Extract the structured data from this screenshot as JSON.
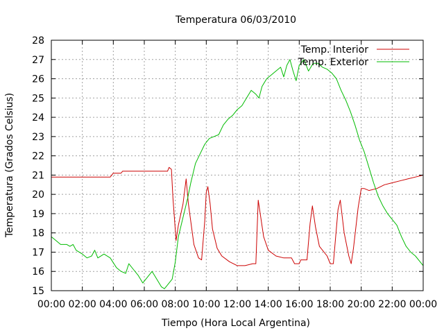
{
  "chart_data": {
    "type": "line",
    "title": "Temperatura 06/03/2010",
    "xlabel": "Tiempo (Hora Local Argentina)",
    "ylabel": "Temperatura (Grados Celsius)",
    "x_unit": "hour of day",
    "xlim": [
      0,
      24
    ],
    "ylim": [
      15,
      28
    ],
    "x_ticks": [
      0,
      2,
      4,
      6,
      8,
      10,
      12,
      14,
      16,
      18,
      20,
      22,
      24
    ],
    "x_tick_labels": [
      "00:00",
      "02:00",
      "04:00",
      "06:00",
      "08:00",
      "10:00",
      "12:00",
      "14:00",
      "16:00",
      "18:00",
      "20:00",
      "22:00",
      "00:00"
    ],
    "y_ticks": [
      15,
      16,
      17,
      18,
      19,
      20,
      21,
      22,
      23,
      24,
      25,
      26,
      27,
      28
    ],
    "y_tick_labels": [
      "15",
      "16",
      "17",
      "18",
      "19",
      "20",
      "21",
      "22",
      "23",
      "24",
      "25",
      "26",
      "27",
      "28"
    ],
    "grid": true,
    "legend_position": "top-right",
    "series": [
      {
        "name": "Temp. Interior",
        "color": "#cc0000",
        "points": [
          [
            0,
            20.9
          ],
          [
            1,
            20.9
          ],
          [
            2,
            20.9
          ],
          [
            3,
            20.9
          ],
          [
            3.8,
            20.9
          ],
          [
            4.0,
            21.1
          ],
          [
            4.5,
            21.1
          ],
          [
            4.6,
            21.2
          ],
          [
            5,
            21.2
          ],
          [
            6,
            21.2
          ],
          [
            7,
            21.2
          ],
          [
            7.5,
            21.2
          ],
          [
            7.6,
            21.4
          ],
          [
            7.75,
            21.3
          ],
          [
            7.85,
            19.8
          ],
          [
            8.05,
            17.6
          ],
          [
            8.2,
            18.4
          ],
          [
            8.5,
            19.5
          ],
          [
            8.7,
            20.8
          ],
          [
            8.85,
            19.5
          ],
          [
            9.2,
            17.4
          ],
          [
            9.5,
            16.7
          ],
          [
            9.7,
            16.6
          ],
          [
            9.9,
            18.6
          ],
          [
            10.0,
            20.1
          ],
          [
            10.1,
            20.4
          ],
          [
            10.25,
            19.5
          ],
          [
            10.4,
            18.2
          ],
          [
            10.7,
            17.2
          ],
          [
            11,
            16.8
          ],
          [
            11.5,
            16.5
          ],
          [
            12,
            16.3
          ],
          [
            12.5,
            16.3
          ],
          [
            13,
            16.4
          ],
          [
            13.2,
            16.4
          ],
          [
            13.35,
            19.7
          ],
          [
            13.5,
            18.9
          ],
          [
            13.7,
            17.8
          ],
          [
            14,
            17.1
          ],
          [
            14.5,
            16.8
          ],
          [
            15,
            16.7
          ],
          [
            15.5,
            16.7
          ],
          [
            15.7,
            16.4
          ],
          [
            16,
            16.4
          ],
          [
            16.1,
            16.6
          ],
          [
            16.5,
            16.6
          ],
          [
            16.7,
            18.5
          ],
          [
            16.85,
            19.4
          ],
          [
            17.05,
            18.3
          ],
          [
            17.3,
            17.3
          ],
          [
            17.8,
            16.8
          ],
          [
            18.0,
            16.4
          ],
          [
            18.2,
            16.4
          ],
          [
            18.5,
            19.2
          ],
          [
            18.65,
            19.7
          ],
          [
            18.9,
            18.0
          ],
          [
            19.2,
            16.8
          ],
          [
            19.35,
            16.4
          ],
          [
            19.5,
            17.2
          ],
          [
            19.8,
            19.3
          ],
          [
            20.0,
            20.3
          ],
          [
            20.2,
            20.3
          ],
          [
            20.5,
            20.2
          ],
          [
            21,
            20.3
          ],
          [
            21.5,
            20.5
          ],
          [
            22,
            20.6
          ],
          [
            22.5,
            20.7
          ],
          [
            23,
            20.8
          ],
          [
            23.5,
            20.9
          ],
          [
            24,
            21.0
          ]
        ]
      },
      {
        "name": "Temp. Exterior",
        "color": "#00bb00",
        "points": [
          [
            0,
            17.8
          ],
          [
            0.3,
            17.6
          ],
          [
            0.6,
            17.4
          ],
          [
            1.0,
            17.4
          ],
          [
            1.2,
            17.3
          ],
          [
            1.4,
            17.4
          ],
          [
            1.6,
            17.1
          ],
          [
            2.0,
            16.9
          ],
          [
            2.3,
            16.7
          ],
          [
            2.6,
            16.8
          ],
          [
            2.8,
            17.1
          ],
          [
            3.0,
            16.7
          ],
          [
            3.4,
            16.9
          ],
          [
            3.8,
            16.7
          ],
          [
            4.2,
            16.2
          ],
          [
            4.5,
            16.0
          ],
          [
            4.8,
            15.9
          ],
          [
            5.0,
            16.4
          ],
          [
            5.3,
            16.1
          ],
          [
            5.6,
            15.8
          ],
          [
            5.9,
            15.4
          ],
          [
            6.2,
            15.7
          ],
          [
            6.5,
            16.0
          ],
          [
            6.8,
            15.6
          ],
          [
            7.1,
            15.2
          ],
          [
            7.3,
            15.1
          ],
          [
            7.5,
            15.3
          ],
          [
            7.8,
            15.6
          ],
          [
            8.0,
            16.5
          ],
          [
            8.2,
            17.8
          ],
          [
            8.5,
            18.8
          ],
          [
            8.8,
            19.8
          ],
          [
            9.0,
            20.6
          ],
          [
            9.3,
            21.6
          ],
          [
            9.6,
            22.1
          ],
          [
            9.9,
            22.6
          ],
          [
            10.2,
            22.9
          ],
          [
            10.5,
            23.0
          ],
          [
            10.8,
            23.1
          ],
          [
            11.1,
            23.6
          ],
          [
            11.4,
            23.9
          ],
          [
            11.7,
            24.1
          ],
          [
            12.0,
            24.4
          ],
          [
            12.3,
            24.6
          ],
          [
            12.6,
            25.0
          ],
          [
            12.9,
            25.4
          ],
          [
            13.2,
            25.2
          ],
          [
            13.4,
            25.0
          ],
          [
            13.6,
            25.6
          ],
          [
            13.9,
            26.0
          ],
          [
            14.2,
            26.2
          ],
          [
            14.5,
            26.4
          ],
          [
            14.8,
            26.6
          ],
          [
            15.0,
            26.1
          ],
          [
            15.2,
            26.7
          ],
          [
            15.4,
            27.0
          ],
          [
            15.6,
            26.4
          ],
          [
            15.8,
            25.9
          ],
          [
            16.0,
            26.7
          ],
          [
            16.3,
            27.0
          ],
          [
            16.6,
            26.4
          ],
          [
            16.9,
            26.8
          ],
          [
            17.2,
            26.8
          ],
          [
            17.5,
            26.6
          ],
          [
            17.8,
            26.5
          ],
          [
            18.1,
            26.3
          ],
          [
            18.4,
            26.0
          ],
          [
            18.7,
            25.4
          ],
          [
            19.0,
            24.9
          ],
          [
            19.3,
            24.3
          ],
          [
            19.6,
            23.6
          ],
          [
            19.9,
            22.8
          ],
          [
            20.2,
            22.2
          ],
          [
            20.5,
            21.4
          ],
          [
            20.8,
            20.6
          ],
          [
            21.1,
            19.9
          ],
          [
            21.4,
            19.4
          ],
          [
            21.7,
            19.0
          ],
          [
            22.0,
            18.7
          ],
          [
            22.3,
            18.4
          ],
          [
            22.6,
            17.8
          ],
          [
            22.9,
            17.3
          ],
          [
            23.2,
            17.0
          ],
          [
            23.5,
            16.8
          ],
          [
            23.8,
            16.5
          ],
          [
            24.0,
            16.3
          ]
        ]
      }
    ]
  }
}
